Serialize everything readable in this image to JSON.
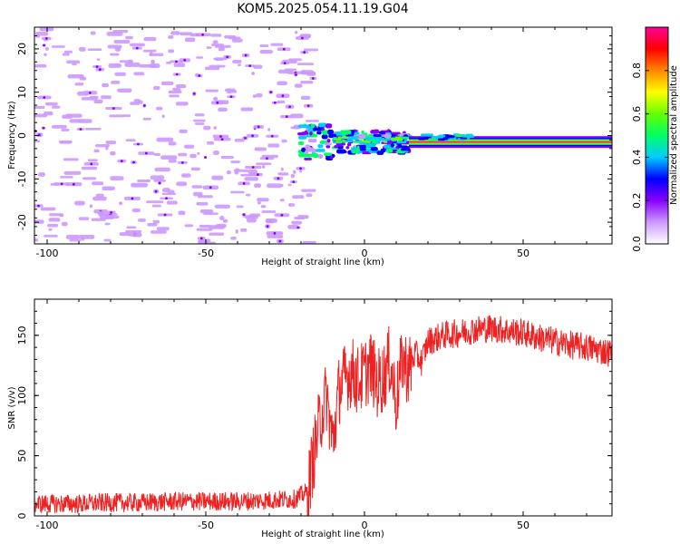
{
  "title": "KOM5.2025.054.11.19.G04",
  "chart_data": [
    {
      "type": "heatmap",
      "xlabel": "Height of straight line (km)",
      "ylabel": "Frequency (Hz)",
      "xlim": [
        -104,
        78
      ],
      "ylim": [
        -25,
        25
      ],
      "xticks": [
        -100,
        -50,
        0,
        50
      ],
      "yticks": [
        -20,
        -10,
        0,
        10,
        20
      ],
      "colorbar": {
        "label": "Normalized spectral amplitude",
        "range": [
          0.0,
          1.0
        ],
        "ticks": [
          "0.0",
          "0.2",
          "0.4",
          "0.6",
          "0.8"
        ],
        "colormap": "rainbow",
        "colors": [
          "#ffffff",
          "#cc99ff",
          "#8800ff",
          "#0000ff",
          "#00ccff",
          "#00ff66",
          "#66ff00",
          "#ffff00",
          "#ff8800",
          "#ff0000",
          "#ff0099"
        ]
      },
      "signal": {
        "noise_region_x": [
          -104,
          -20
        ],
        "transition_x": [
          -20,
          14
        ],
        "strong_band_x": [
          14,
          78
        ],
        "band_frequency_hz": -1.5,
        "peak_amplitude": 1.0
      }
    },
    {
      "type": "line",
      "xlabel": "Height of straight line (km)",
      "ylabel": "SNR (v/v)",
      "xlim": [
        -104,
        78
      ],
      "ylim": [
        0,
        180
      ],
      "xticks": [
        -100,
        -50,
        0,
        50
      ],
      "yticks": [
        0,
        50,
        100,
        150
      ],
      "series": [
        {
          "color": "#ee2222",
          "x": [
            -104,
            -90,
            -80,
            -70,
            -60,
            -50,
            -40,
            -30,
            -22,
            -18,
            -14,
            -12,
            -10,
            -8,
            -6,
            -4,
            -2,
            0,
            2,
            4,
            6,
            8,
            10,
            12,
            14,
            16,
            18,
            20,
            25,
            30,
            35,
            40,
            45,
            50,
            55,
            60,
            65,
            70,
            75,
            78
          ],
          "y": [
            10,
            10,
            11,
            11,
            12,
            12,
            12,
            13,
            14,
            20,
            80,
            100,
            60,
            105,
            115,
            120,
            112,
            118,
            125,
            110,
            115,
            130,
            95,
            130,
            120,
            135,
            128,
            145,
            150,
            152,
            155,
            156,
            154,
            152,
            148,
            145,
            142,
            140,
            137,
            135
          ]
        }
      ]
    }
  ]
}
